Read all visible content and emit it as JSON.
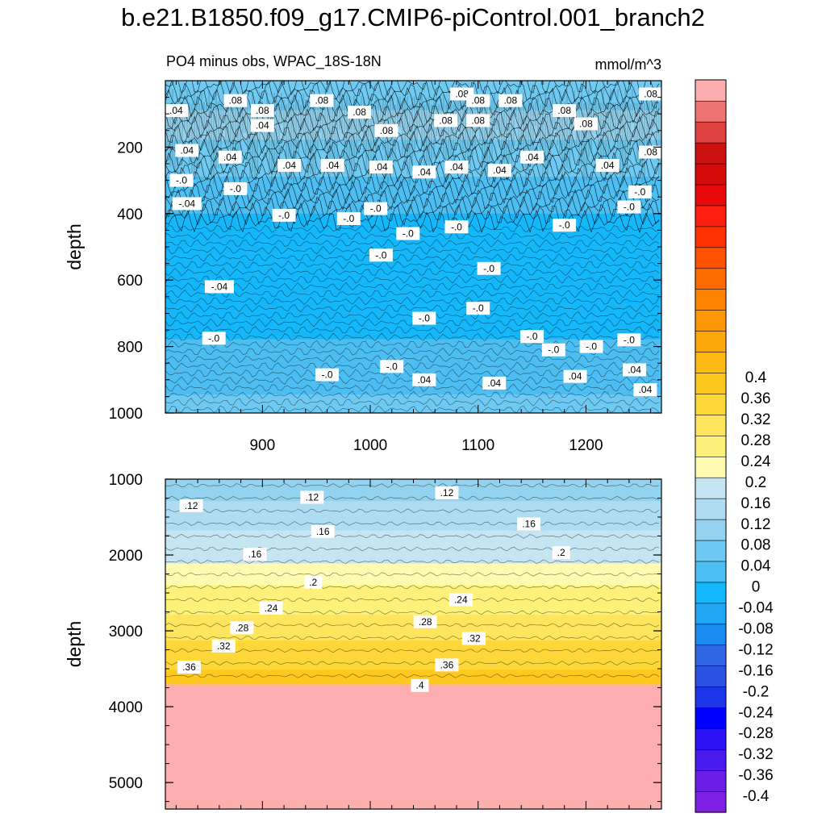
{
  "title": "b.e21.B1850.f09_g17.CMIP6-piControl.001_branch2",
  "subtitle": "PO4 minus obs, WPAC_18S-18N",
  "units": "mmol/m^3",
  "colors": {
    "levels": [
      "#7e1fe3",
      "#6b1ee8",
      "#4a19f0",
      "#2a12f5",
      "#0000ff",
      "#1c35e8",
      "#2a52e0",
      "#2f66e6",
      "#1a8bf0",
      "#1fa6f5",
      "#14b8fa",
      "#4dbef2",
      "#6ecaf2",
      "#93d3ef",
      "#aedcf0",
      "#c6e5f3",
      "#fefbb1",
      "#fef17a",
      "#fee55e",
      "#fed838",
      "#fec91e",
      "#feb913",
      "#fea70a",
      "#fe9705",
      "#fe8400",
      "#fe6c00",
      "#fe5200",
      "#fe3300",
      "#fe1f0f",
      "#e80a0a",
      "#d70a0a",
      "#cc1111",
      "#e04141",
      "#ee7474",
      "#fdaeae"
    ]
  },
  "chart_data": [
    {
      "type": "contour",
      "panel": "top",
      "xlabel": "",
      "ylabel": "depth",
      "xlim": [
        810,
        1270
      ],
      "ylim": [
        1000,
        0
      ],
      "x_ticks": [
        900,
        1000,
        1100,
        1200
      ],
      "x_tick_labels": [
        "900",
        "1000",
        "1100",
        "1200"
      ],
      "y_ticks": [
        200,
        400,
        600,
        800,
        1000
      ],
      "y_tick_labels": [
        "200",
        "400",
        "600",
        "800",
        "1000"
      ],
      "bands": [
        {
          "depth": 25,
          "value": 0.07
        },
        {
          "depth": 150,
          "value": 0.09
        },
        {
          "depth": 240,
          "value": 0.06
        },
        {
          "depth": 320,
          "value": 0.03
        },
        {
          "depth": 390,
          "value": 0.005
        },
        {
          "depth": 440,
          "value": -0.02
        },
        {
          "depth": 600,
          "value": -0.03
        },
        {
          "depth": 720,
          "value": -0.01
        },
        {
          "depth": 800,
          "value": 0.005
        },
        {
          "depth": 880,
          "value": 0.02
        },
        {
          "depth": 940,
          "value": 0.04
        },
        {
          "depth": 1000,
          "value": 0.05
        }
      ],
      "contour_labels": [
        {
          "text": ".04",
          "x": 820,
          "y": 90
        },
        {
          "text": ".08",
          "x": 875,
          "y": 60
        },
        {
          "text": ".08",
          "x": 900,
          "y": 90
        },
        {
          "text": ".04",
          "x": 900,
          "y": 135
        },
        {
          "text": ".08",
          "x": 955,
          "y": 60
        },
        {
          "text": ".08",
          "x": 990,
          "y": 95
        },
        {
          "text": ".08",
          "x": 1015,
          "y": 150
        },
        {
          "text": ".08",
          "x": 1070,
          "y": 120
        },
        {
          "text": ".08",
          "x": 1085,
          "y": 40
        },
        {
          "text": ".08",
          "x": 1100,
          "y": 60
        },
        {
          "text": ".08",
          "x": 1100,
          "y": 120
        },
        {
          "text": ".08",
          "x": 1130,
          "y": 60
        },
        {
          "text": ".08",
          "x": 1180,
          "y": 90
        },
        {
          "text": ".08",
          "x": 1200,
          "y": 130
        },
        {
          "text": ".08",
          "x": 1260,
          "y": 40
        },
        {
          "text": ".04",
          "x": 830,
          "y": 210
        },
        {
          "text": ".04",
          "x": 870,
          "y": 230
        },
        {
          "text": ".04",
          "x": 925,
          "y": 255
        },
        {
          "text": ".04",
          "x": 965,
          "y": 255
        },
        {
          "text": ".04",
          "x": 1010,
          "y": 260
        },
        {
          "text": ".04",
          "x": 1050,
          "y": 275
        },
        {
          "text": ".04",
          "x": 1080,
          "y": 260
        },
        {
          "text": ".04",
          "x": 1120,
          "y": 270
        },
        {
          "text": ".04",
          "x": 1150,
          "y": 230
        },
        {
          "text": ".04",
          "x": 1220,
          "y": 255
        },
        {
          "text": ".08",
          "x": 1260,
          "y": 215
        },
        {
          "text": "-.0",
          "x": 825,
          "y": 300
        },
        {
          "text": "-.04",
          "x": 830,
          "y": 370
        },
        {
          "text": "-.0",
          "x": 875,
          "y": 325
        },
        {
          "text": "-.0",
          "x": 920,
          "y": 405
        },
        {
          "text": "-.0",
          "x": 980,
          "y": 415
        },
        {
          "text": "-.0",
          "x": 1005,
          "y": 385
        },
        {
          "text": "-.0",
          "x": 1035,
          "y": 460
        },
        {
          "text": "-.0",
          "x": 1080,
          "y": 440
        },
        {
          "text": "-.0",
          "x": 1110,
          "y": 565
        },
        {
          "text": "-.0",
          "x": 1180,
          "y": 435
        },
        {
          "text": "-.0",
          "x": 1240,
          "y": 380
        },
        {
          "text": "-.0",
          "x": 1250,
          "y": 335
        },
        {
          "text": "-.0",
          "x": 1010,
          "y": 525
        },
        {
          "text": "-.04",
          "x": 860,
          "y": 620
        },
        {
          "text": "-.0",
          "x": 855,
          "y": 775
        },
        {
          "text": "-.0",
          "x": 960,
          "y": 885
        },
        {
          "text": "-.0",
          "x": 1020,
          "y": 860
        },
        {
          "text": "-.0",
          "x": 1050,
          "y": 715
        },
        {
          "text": "-.0",
          "x": 1100,
          "y": 685
        },
        {
          "text": "-.0",
          "x": 1150,
          "y": 770
        },
        {
          "text": "-.0",
          "x": 1170,
          "y": 810
        },
        {
          "text": "-.0",
          "x": 1205,
          "y": 800
        },
        {
          "text": "-.0",
          "x": 1240,
          "y": 780
        },
        {
          "text": ".04",
          "x": 1050,
          "y": 900
        },
        {
          "text": ".04",
          "x": 1115,
          "y": 910
        },
        {
          "text": ".04",
          "x": 1190,
          "y": 890
        },
        {
          "text": ".04",
          "x": 1245,
          "y": 870
        },
        {
          "text": ".04",
          "x": 1255,
          "y": 930
        }
      ]
    },
    {
      "type": "contour",
      "panel": "bottom",
      "xlabel": "",
      "ylabel": "depth",
      "xlim": [
        810,
        1270
      ],
      "ylim": [
        5350,
        1000
      ],
      "y_ticks": [
        1000,
        2000,
        3000,
        4000,
        5000
      ],
      "y_tick_labels": [
        "1000",
        "2000",
        "3000",
        "4000",
        "5000"
      ],
      "bands": [
        {
          "depth": 1000,
          "value": 0.08
        },
        {
          "depth": 1300,
          "value": 0.12
        },
        {
          "depth": 1700,
          "value": 0.16
        },
        {
          "depth": 2100,
          "value": 0.2
        },
        {
          "depth": 2500,
          "value": 0.25
        },
        {
          "depth": 2900,
          "value": 0.29
        },
        {
          "depth": 3200,
          "value": 0.33
        },
        {
          "depth": 3500,
          "value": 0.36
        },
        {
          "depth": 3650,
          "value": 0.39
        },
        {
          "depth": 3800,
          "value": 0.42
        }
      ],
      "contour_labels": [
        {
          "text": ".12",
          "x": 834,
          "y": 1350
        },
        {
          "text": ".12",
          "x": 946,
          "y": 1240
        },
        {
          "text": ".12",
          "x": 1071,
          "y": 1180
        },
        {
          "text": ".16",
          "x": 956,
          "y": 1690
        },
        {
          "text": ".16",
          "x": 1147,
          "y": 1590
        },
        {
          "text": ".16",
          "x": 893,
          "y": 1990
        },
        {
          "text": ".2",
          "x": 1177,
          "y": 1970
        },
        {
          "text": ".2",
          "x": 947,
          "y": 2360
        },
        {
          "text": ".24",
          "x": 908,
          "y": 2700
        },
        {
          "text": ".24",
          "x": 1084,
          "y": 2590
        },
        {
          "text": ".28",
          "x": 881,
          "y": 2960
        },
        {
          "text": ".28",
          "x": 1051,
          "y": 2880
        },
        {
          "text": ".32",
          "x": 864,
          "y": 3200
        },
        {
          "text": ".32",
          "x": 1096,
          "y": 3100
        },
        {
          "text": ".36",
          "x": 832,
          "y": 3480
        },
        {
          "text": ".36",
          "x": 1071,
          "y": 3450
        },
        {
          "text": ".4",
          "x": 1046,
          "y": 3720
        }
      ]
    },
    {
      "type": "colorbar",
      "levels": [
        -0.4,
        -0.36,
        -0.32,
        -0.28,
        -0.24,
        -0.2,
        -0.16,
        -0.12,
        -0.08,
        -0.04,
        0,
        0.04,
        0.08,
        0.12,
        0.16,
        0.2,
        0.24,
        0.28,
        0.32,
        0.36,
        0.4
      ],
      "labels": [
        "-0.4",
        "-0.36",
        "-0.32",
        "-0.28",
        "-0.24",
        "-0.2",
        "-0.16",
        "-0.12",
        "-0.08",
        "-0.04",
        "0",
        "0.04",
        "0.08",
        "0.12",
        "0.16",
        "0.2",
        "0.24",
        "0.28",
        "0.32",
        "0.36",
        "0.4"
      ]
    }
  ]
}
